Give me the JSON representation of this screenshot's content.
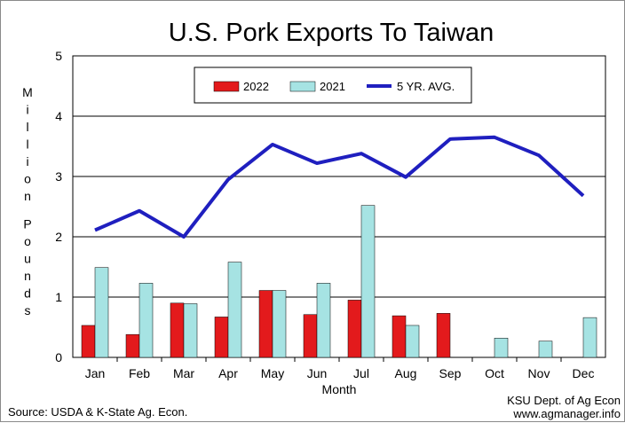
{
  "chart_data": {
    "type": "bar",
    "title": "U.S. Pork Exports To Taiwan",
    "xlabel": "Month",
    "ylabel": "Million Pounds",
    "ylim": [
      0,
      5
    ],
    "yticks": [
      "0",
      "1",
      "2",
      "3",
      "4",
      "5"
    ],
    "grid": true,
    "legend_position": "top-center",
    "categories": [
      "Jan",
      "Feb",
      "Mar",
      "Apr",
      "May",
      "Jun",
      "Jul",
      "Aug",
      "Sep",
      "Oct",
      "Nov",
      "Dec"
    ],
    "series": [
      {
        "name": "2022",
        "type": "bar",
        "color": "#e31a1c",
        "values": [
          0.53,
          0.38,
          0.9,
          0.67,
          1.11,
          0.71,
          0.95,
          0.69,
          0.73,
          null,
          null,
          null
        ]
      },
      {
        "name": "2021",
        "type": "bar",
        "color": "#a6e3e3",
        "values": [
          1.49,
          1.23,
          0.89,
          1.58,
          1.11,
          1.23,
          2.52,
          0.53,
          0.0,
          0.32,
          0.27,
          0.66
        ]
      },
      {
        "name": "5 YR. AVG.",
        "type": "line",
        "color": "#1f1fbf",
        "values": [
          2.11,
          2.43,
          2.0,
          2.95,
          3.53,
          3.22,
          3.38,
          2.99,
          3.62,
          3.65,
          3.35,
          2.68
        ]
      }
    ]
  },
  "source": "Source:  USDA & K-State Ag. Econ.",
  "credit": {
    "line1": "KSU Dept. of Ag Econ",
    "line2": "www.agmanager.info"
  }
}
